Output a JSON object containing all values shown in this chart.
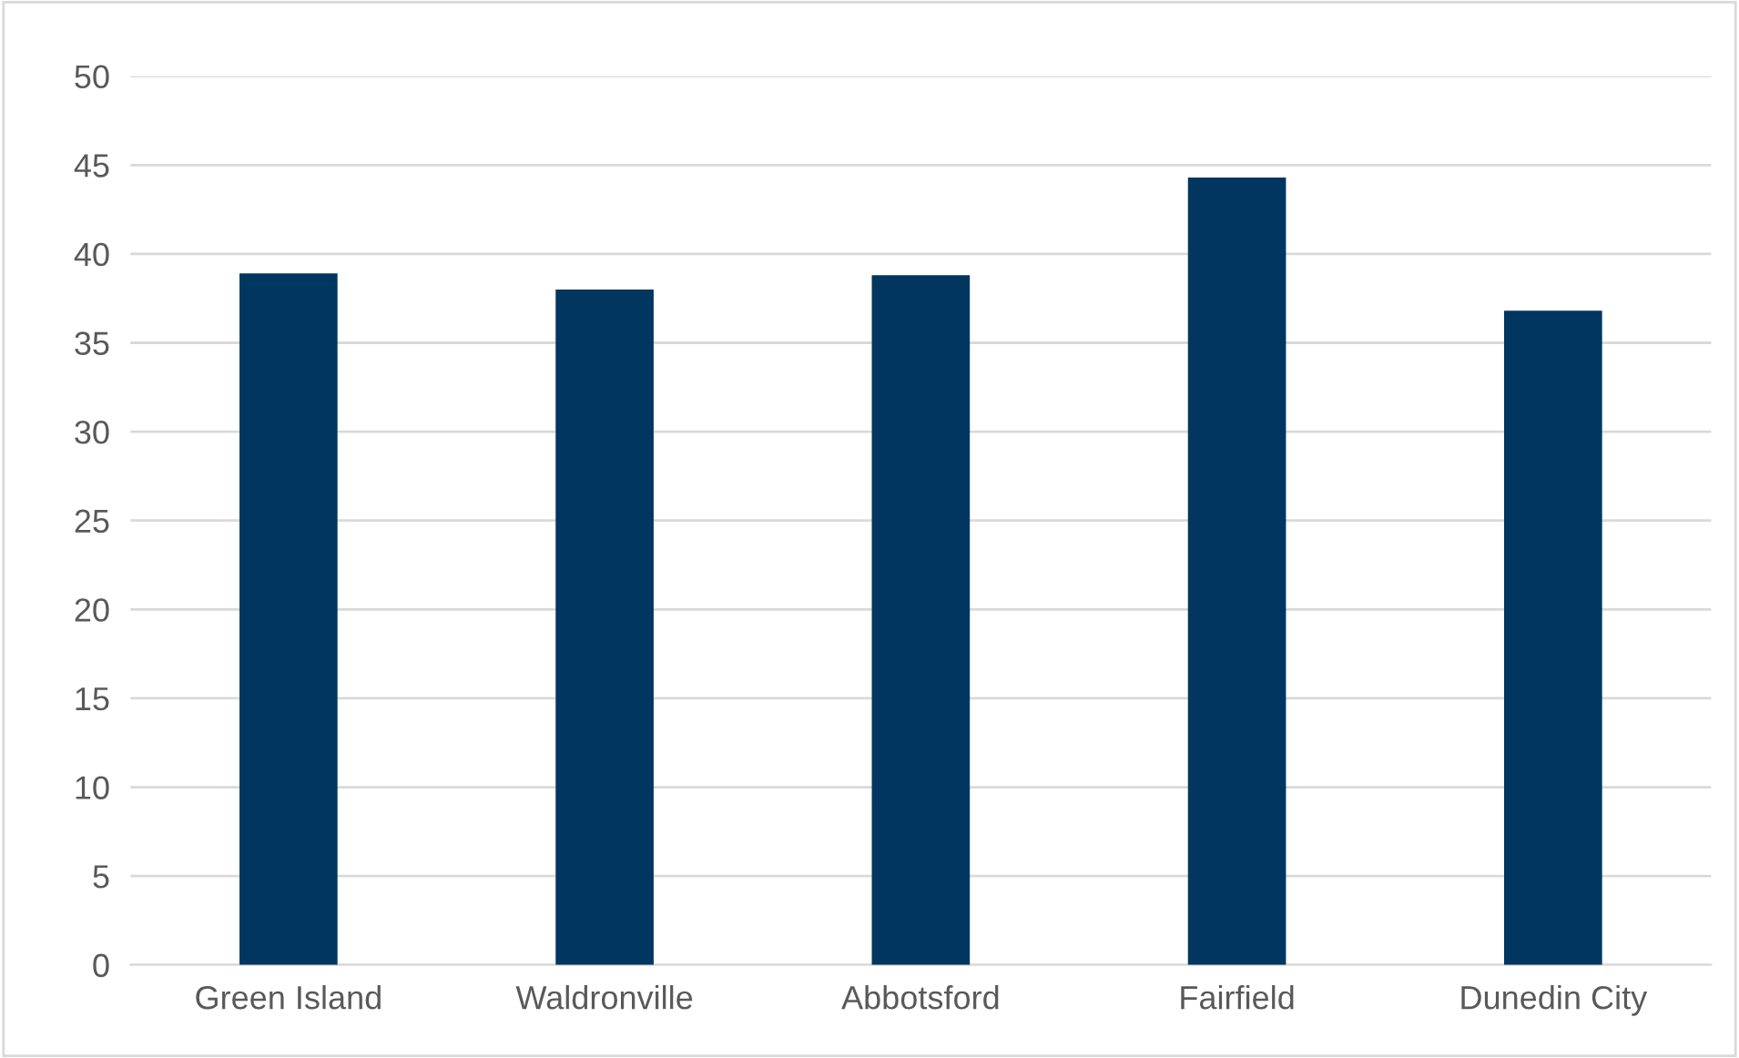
{
  "chart_data": {
    "type": "bar",
    "categories": [
      "Green Island",
      "Waldronville",
      "Abbotsford",
      "Fairfield",
      "Dunedin City"
    ],
    "values": [
      38.9,
      38.0,
      38.8,
      44.3,
      36.8
    ],
    "color": "#003660",
    "ylim": [
      0,
      50
    ],
    "yticks": [
      0,
      5,
      10,
      15,
      20,
      25,
      30,
      35,
      40,
      45,
      50
    ],
    "grid": "y"
  }
}
